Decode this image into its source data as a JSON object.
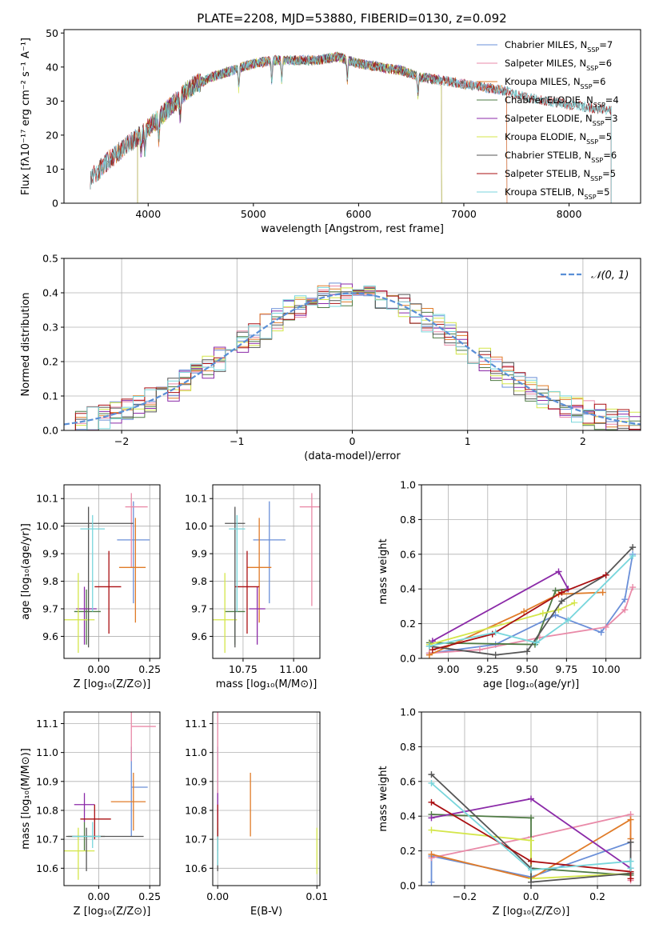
{
  "figure": {
    "title": "PLATE=2208, MJD=53880, FIBERID=0130, z=0.092"
  },
  "model_colors": [
    "#6a8fd8",
    "#e98aa8",
    "#e07b28",
    "#4e7a43",
    "#8b2aa8",
    "#d4e64a",
    "#555555",
    "#aa0f12",
    "#78d6dc"
  ],
  "chart_data": [
    {
      "id": "spectrum",
      "type": "line",
      "xlabel": "wavelength [Angstrom, rest frame]",
      "ylabel": "Flux [fλ10⁻¹⁷ erg cm⁻² s⁻¹ A⁻¹]",
      "xlim": [
        3200,
        8680
      ],
      "ylim": [
        0,
        51
      ],
      "xticks": [
        4000,
        5000,
        6000,
        7000,
        8000
      ],
      "yticks": [
        0,
        10,
        20,
        30,
        40,
        50
      ],
      "legend_position": "top-right",
      "continuum": {
        "x": [
          3450,
          3600,
          3800,
          4000,
          4200,
          4400,
          4600,
          4800,
          5000,
          5200,
          5400,
          5600,
          5800,
          6000,
          6200,
          6400,
          6600,
          6800,
          7000,
          7200,
          7400,
          7600,
          7800,
          8000,
          8200,
          8500
        ],
        "y": [
          7,
          12,
          17,
          22,
          28,
          34,
          37,
          39,
          41,
          42,
          42,
          42,
          43,
          41,
          40,
          39,
          37,
          36,
          35,
          34,
          33,
          31,
          30,
          29,
          28,
          27
        ]
      },
      "series": [
        {
          "name": "Chabrier MILES, N_SSP=7",
          "xrange": [
            3530,
            7410
          ],
          "color": "#6a8fd8"
        },
        {
          "name": "Salpeter MILES, N_SSP=6",
          "xrange": [
            3530,
            7410
          ],
          "color": "#e98aa8"
        },
        {
          "name": "Kroupa MILES, N_SSP=6",
          "xrange": [
            3530,
            7410
          ],
          "color": "#e07b28"
        },
        {
          "name": "Chabrier ELODIE, N_SSP=4",
          "xrange": [
            3900,
            6790
          ],
          "color": "#4e7a43"
        },
        {
          "name": "Salpeter ELODIE, N_SSP=3",
          "xrange": [
            3900,
            6790
          ],
          "color": "#8b2aa8"
        },
        {
          "name": "Kroupa ELODIE, N_SSP=5",
          "xrange": [
            3900,
            6790
          ],
          "color": "#d4e64a"
        },
        {
          "name": "Chabrier STELIB, N_SSP=6",
          "xrange": [
            3450,
            8400
          ],
          "color": "#555555"
        },
        {
          "name": "Salpeter STELIB, N_SSP=5",
          "xrange": [
            3450,
            8400
          ],
          "color": "#aa0f12"
        },
        {
          "name": "Kroupa STELIB, N_SSP=5",
          "xrange": [
            3450,
            8400
          ],
          "color": "#78d6dc"
        }
      ],
      "absorption_lines": [
        3934,
        3969,
        4102,
        4304,
        4861,
        5175,
        5270,
        5893,
        6563
      ]
    },
    {
      "id": "residuals",
      "type": "histogram",
      "xlabel": "(data-model)/error",
      "ylabel": "Normed distribution",
      "xlim": [
        -2.5,
        2.5
      ],
      "ylim": [
        0,
        0.5
      ],
      "xticks": [
        -2,
        -1,
        0,
        1,
        2
      ],
      "yticks": [
        0.0,
        0.1,
        0.2,
        0.3,
        0.4,
        0.5
      ],
      "grid": true,
      "bin_width": 0.1,
      "reference_curve": {
        "label": "𝒩(0, 1)",
        "type": "gaussian",
        "mean": 0,
        "sigma": 1,
        "color": "#5a8fd6",
        "style": "dashed"
      },
      "legend_position": "top-right"
    },
    {
      "id": "age_vs_Z",
      "type": "errorbar",
      "xlabel": "Z [log₁₀(Z/Z⊙)]",
      "ylabel": "age  [log₁₀(age/yr)]",
      "xlim": [
        -0.17,
        0.3
      ],
      "ylim": [
        9.52,
        10.15
      ],
      "xticks": [
        0.0,
        0.25
      ],
      "yticks": [
        9.6,
        9.7,
        9.8,
        9.9,
        10.0,
        10.1
      ],
      "grid": true,
      "points": [
        {
          "x": 0.17,
          "y": 9.95,
          "xerr": [
            0.08,
            0.08
          ],
          "yerr": [
            0.23,
            0.14
          ]
        },
        {
          "x": 0.16,
          "y": 10.07,
          "xerr": [
            0.03,
            0.08
          ],
          "yerr": [
            0.22,
            0.05
          ]
        },
        {
          "x": 0.18,
          "y": 9.85,
          "xerr": [
            0.08,
            0.05
          ],
          "yerr": [
            0.2,
            0.18
          ]
        },
        {
          "x": -0.06,
          "y": 9.69,
          "xerr": [
            0.06,
            0.07
          ],
          "yerr": [
            0.12,
            0.08
          ]
        },
        {
          "x": -0.07,
          "y": 9.7,
          "xerr": [
            0.04,
            0.06
          ],
          "yerr": [
            0.13,
            0.08
          ]
        },
        {
          "x": -0.1,
          "y": 9.66,
          "xerr": [
            0.07,
            0.08
          ],
          "yerr": [
            0.12,
            0.17
          ]
        },
        {
          "x": -0.05,
          "y": 10.01,
          "xerr": [
            0.12,
            0.22
          ],
          "yerr": [
            0.45,
            0.06
          ]
        },
        {
          "x": 0.05,
          "y": 9.78,
          "xerr": [
            0.07,
            0.06
          ],
          "yerr": [
            0.17,
            0.13
          ]
        },
        {
          "x": -0.03,
          "y": 9.99,
          "xerr": [
            0.06,
            0.06
          ],
          "yerr": [
            0.3,
            0.05
          ]
        }
      ]
    },
    {
      "id": "age_vs_mass",
      "type": "errorbar",
      "xlabel": "mass [log₁₀(M/M⊙)]",
      "ylabel": "",
      "xlim": [
        10.6,
        11.13
      ],
      "ylim": [
        9.52,
        10.15
      ],
      "xticks": [
        10.75,
        11.0
      ],
      "yticks": [
        9.6,
        9.7,
        9.8,
        9.9,
        10.0,
        10.1
      ],
      "grid": true,
      "points": [
        {
          "x": 10.88,
          "y": 9.95,
          "xerr": [
            0.08,
            0.08
          ],
          "yerr": [
            0.23,
            0.14
          ]
        },
        {
          "x": 11.09,
          "y": 10.07,
          "xerr": [
            0.06,
            0.06
          ],
          "yerr": [
            0.36,
            0.05
          ]
        },
        {
          "x": 10.83,
          "y": 9.85,
          "xerr": [
            0.06,
            0.06
          ],
          "yerr": [
            0.2,
            0.18
          ]
        },
        {
          "x": 10.71,
          "y": 9.69,
          "xerr": [
            0.05,
            0.05
          ],
          "yerr": [
            0.12,
            0.08
          ]
        },
        {
          "x": 10.82,
          "y": 9.7,
          "xerr": [
            0.04,
            0.04
          ],
          "yerr": [
            0.13,
            0.08
          ]
        },
        {
          "x": 10.66,
          "y": 9.66,
          "xerr": [
            0.06,
            0.06
          ],
          "yerr": [
            0.12,
            0.17
          ]
        },
        {
          "x": 10.71,
          "y": 10.01,
          "xerr": [
            0.05,
            0.05
          ],
          "yerr": [
            0.45,
            0.06
          ]
        },
        {
          "x": 10.77,
          "y": 9.78,
          "xerr": [
            0.06,
            0.06
          ],
          "yerr": [
            0.17,
            0.13
          ]
        },
        {
          "x": 10.72,
          "y": 9.99,
          "xerr": [
            0.04,
            0.04
          ],
          "yerr": [
            0.3,
            0.05
          ]
        }
      ]
    },
    {
      "id": "weight_vs_age",
      "type": "line",
      "xlabel": "age  [log₁₀(age/yr)]",
      "ylabel": "mass weight",
      "xlim": [
        8.83,
        10.22
      ],
      "ylim": [
        0,
        1
      ],
      "xticks": [
        9.0,
        9.25,
        9.5,
        9.75,
        10.0
      ],
      "yticks": [
        0.0,
        0.2,
        0.4,
        0.6,
        0.8,
        1.0
      ],
      "grid": true,
      "series": [
        {
          "x": [
            8.88,
            9.3,
            9.68,
            9.97,
            10.12,
            10.17
          ],
          "y": [
            0.03,
            0.08,
            0.25,
            0.15,
            0.34,
            0.6
          ]
        },
        {
          "x": [
            8.88,
            9.2,
            9.58,
            10.0,
            10.12,
            10.17
          ],
          "y": [
            0.03,
            0.05,
            0.12,
            0.18,
            0.28,
            0.41
          ]
        },
        {
          "x": [
            8.88,
            9.48,
            9.7,
            9.98
          ],
          "y": [
            0.02,
            0.27,
            0.37,
            0.38
          ]
        },
        {
          "x": [
            8.88,
            9.55,
            9.68,
            9.76
          ],
          "y": [
            0.09,
            0.08,
            0.39,
            0.4
          ]
        },
        {
          "x": [
            8.9,
            9.7,
            9.76
          ],
          "y": [
            0.1,
            0.5,
            0.4
          ]
        },
        {
          "x": [
            8.88,
            9.6,
            9.7,
            9.8
          ],
          "y": [
            0.08,
            0.26,
            0.28,
            0.32
          ]
        },
        {
          "x": [
            8.88,
            9.3,
            9.5,
            9.72,
            10.0,
            10.17
          ],
          "y": [
            0.07,
            0.02,
            0.04,
            0.33,
            0.48,
            0.64
          ]
        },
        {
          "x": [
            8.9,
            9.28,
            9.72,
            10.0
          ],
          "y": [
            0.05,
            0.14,
            0.38,
            0.48
          ]
        },
        {
          "x": [
            8.88,
            9.3,
            9.56,
            9.76,
            10.17
          ],
          "y": [
            0.07,
            0.15,
            0.09,
            0.22,
            0.59
          ]
        }
      ]
    },
    {
      "id": "mass_vs_Z",
      "type": "errorbar",
      "xlabel": "Z [log₁₀(Z/Z⊙)]",
      "ylabel": "mass [log₁₀(M/M⊙)]",
      "xlim": [
        -0.17,
        0.3
      ],
      "ylim": [
        10.54,
        11.14
      ],
      "xticks": [
        0.0,
        0.25
      ],
      "yticks": [
        10.6,
        10.7,
        10.8,
        10.9,
        11.0,
        11.1
      ],
      "grid": true,
      "points": [
        {
          "x": 0.16,
          "y": 10.88,
          "xerr": [
            0.0,
            0.08
          ],
          "yerr": [
            0.17,
            0.14
          ]
        },
        {
          "x": 0.16,
          "y": 11.09,
          "xerr": [
            0.0,
            0.12
          ],
          "yerr": [
            0.12,
            0.05
          ]
        },
        {
          "x": 0.17,
          "y": 10.83,
          "xerr": [
            0.11,
            0.06
          ],
          "yerr": [
            0.1,
            0.1
          ]
        },
        {
          "x": -0.07,
          "y": 10.71,
          "xerr": [
            0.08,
            0.1
          ],
          "yerr": [
            0.05,
            0.05
          ]
        },
        {
          "x": -0.07,
          "y": 10.82,
          "xerr": [
            0.05,
            0.05
          ],
          "yerr": [
            0.06,
            0.04
          ]
        },
        {
          "x": -0.1,
          "y": 10.66,
          "xerr": [
            0.07,
            0.08
          ],
          "yerr": [
            0.1,
            0.08
          ]
        },
        {
          "x": -0.06,
          "y": 10.71,
          "xerr": [
            0.1,
            0.28
          ],
          "yerr": [
            0.12,
            0.03
          ]
        },
        {
          "x": -0.02,
          "y": 10.77,
          "xerr": [
            0.07,
            0.08
          ],
          "yerr": [
            0.07,
            0.05
          ]
        },
        {
          "x": -0.03,
          "y": 10.71,
          "xerr": [
            0.1,
            0.04
          ],
          "yerr": [
            0.04,
            0.05
          ]
        }
      ]
    },
    {
      "id": "mass_vs_ebv",
      "type": "errorbar",
      "xlabel": "E(B-V)",
      "ylabel": "",
      "xlim": [
        -0.0005,
        0.0103
      ],
      "ylim": [
        10.54,
        11.14
      ],
      "xticks": [
        0.0,
        0.01
      ],
      "yticks": [
        10.6,
        10.7,
        10.8,
        10.9,
        11.0,
        11.1
      ],
      "grid": true,
      "points": [
        {
          "x": 0.0,
          "y": 10.88,
          "yerr": [
            0.17,
            0.14
          ]
        },
        {
          "x": 0.0,
          "y": 10.95,
          "yerr": [
            0.2,
            0.2
          ]
        },
        {
          "x": 0.0033,
          "y": 10.82,
          "yerr": [
            0.11,
            0.11
          ]
        },
        {
          "x": 0.0,
          "y": 10.71,
          "yerr": [
            0.05,
            0.05
          ]
        },
        {
          "x": 0.0,
          "y": 10.82,
          "yerr": [
            0.06,
            0.04
          ]
        },
        {
          "x": 0.01,
          "y": 10.66,
          "yerr": [
            0.08,
            0.08
          ]
        },
        {
          "x": 0.0,
          "y": 10.71,
          "yerr": [
            0.12,
            0.03
          ]
        },
        {
          "x": 0.0,
          "y": 10.77,
          "yerr": [
            0.07,
            0.05
          ]
        },
        {
          "x": 0.0,
          "y": 10.66,
          "yerr": [
            0.05,
            0.05
          ]
        }
      ]
    },
    {
      "id": "weight_vs_Z",
      "type": "line",
      "xlabel": "Z [log₁₀(Z/Z⊙)]",
      "ylabel": "mass weight",
      "xlim": [
        -0.33,
        0.33
      ],
      "ylim": [
        0,
        1
      ],
      "xticks": [
        -0.2,
        0.0,
        0.2
      ],
      "yticks": [
        0.0,
        0.2,
        0.4,
        0.6,
        0.8,
        1.0
      ],
      "grid": true,
      "series": [
        {
          "x": [
            -0.3,
            -0.3,
            0.0,
            0.3,
            0.3
          ],
          "y": [
            0.02,
            0.17,
            0.05,
            0.25,
            0.1
          ]
        },
        {
          "x": [
            -0.3,
            0.0,
            0.3,
            0.3
          ],
          "y": [
            0.16,
            0.28,
            0.41,
            0.03
          ]
        },
        {
          "x": [
            -0.3,
            0.0,
            0.3,
            0.3
          ],
          "y": [
            0.18,
            0.04,
            0.38,
            0.27
          ]
        },
        {
          "x": [
            -0.3,
            0.0,
            0.0,
            0.3
          ],
          "y": [
            0.41,
            0.39,
            0.1,
            0.06
          ]
        },
        {
          "x": [
            -0.3,
            0.0,
            0.3
          ],
          "y": [
            0.39,
            0.5,
            0.1
          ]
        },
        {
          "x": [
            -0.3,
            0.0,
            0.0,
            0.3
          ],
          "y": [
            0.32,
            0.26,
            0.04,
            0.07
          ]
        },
        {
          "x": [
            -0.3,
            0.0,
            0.0,
            0.3,
            0.3
          ],
          "y": [
            0.64,
            0.1,
            0.02,
            0.07,
            0.25
          ]
        },
        {
          "x": [
            -0.3,
            0.0,
            0.3,
            0.3
          ],
          "y": [
            0.48,
            0.14,
            0.08,
            0.04
          ]
        },
        {
          "x": [
            -0.3,
            0.0,
            0.3,
            0.3
          ],
          "y": [
            0.59,
            0.09,
            0.14,
            0.1
          ]
        }
      ]
    }
  ]
}
